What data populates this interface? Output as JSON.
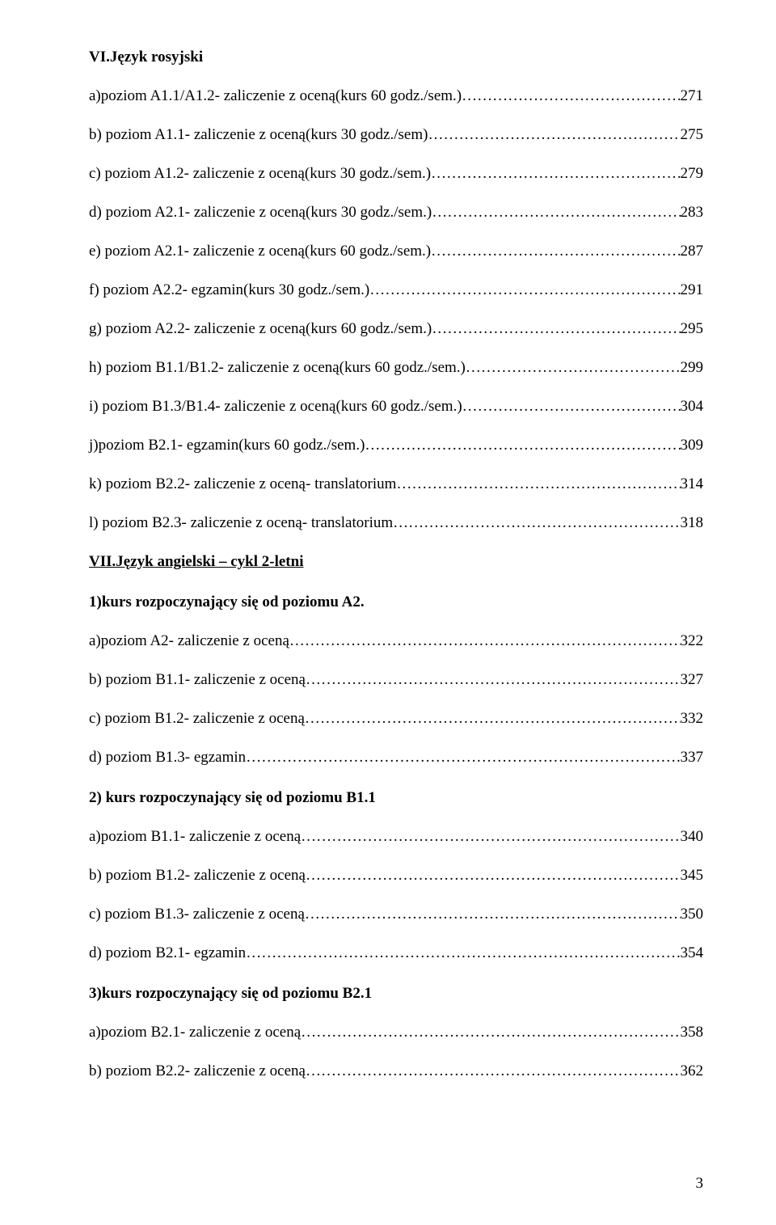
{
  "section6": {
    "heading": "VI.Język rosyjski",
    "items": [
      {
        "label": "a)poziom A1.1/A1.2- zaliczenie z oceną(kurs 60 godz./sem.)",
        "page": "271"
      },
      {
        "label": "b) poziom A1.1- zaliczenie z oceną(kurs 30 godz./sem)",
        "page": "275"
      },
      {
        "label": "c) poziom A1.2- zaliczenie z oceną(kurs 30 godz./sem.)",
        "page": "279"
      },
      {
        "label": "d) poziom A2.1- zaliczenie z oceną(kurs 30 godz./sem.)",
        "page": "283"
      },
      {
        "label": "e) poziom A2.1- zaliczenie z oceną(kurs 60 godz./sem.)",
        "page": "287"
      },
      {
        "label": "f) poziom A2.2- egzamin(kurs 30 godz./sem.)",
        "page": "291"
      },
      {
        "label": "g) poziom A2.2- zaliczenie z oceną(kurs 60 godz./sem.)",
        "page": "295"
      },
      {
        "label": "h) poziom B1.1/B1.2- zaliczenie z oceną(kurs 60 godz./sem.)",
        "page": "299"
      },
      {
        "label": "i) poziom B1.3/B1.4- zaliczenie z oceną(kurs 60 godz./sem.)",
        "page": "304"
      },
      {
        "label": "j)poziom B2.1- egzamin(kurs 60 godz./sem.)",
        "page": "309"
      },
      {
        "label": "k) poziom B2.2- zaliczenie z oceną- translatorium",
        "page": "314"
      },
      {
        "label": "l) poziom B2.3- zaliczenie z oceną- translatorium",
        "page": "318"
      }
    ]
  },
  "section7": {
    "heading": "VII.Język angielski – cykl 2-letni",
    "sub1": {
      "title": "1)kurs rozpoczynający się od poziomu A2.",
      "items": [
        {
          "label": "a)poziom A2- zaliczenie z oceną",
          "page": "322"
        },
        {
          "label": "b) poziom B1.1- zaliczenie z oceną",
          "page": "327"
        },
        {
          "label": "c) poziom B1.2- zaliczenie z oceną",
          "page": "332"
        },
        {
          "label": "d) poziom B1.3- egzamin",
          "page": "337"
        }
      ]
    },
    "sub2": {
      "title": "2) kurs rozpoczynający się od poziomu B1.1",
      "items": [
        {
          "label": "a)poziom B1.1- zaliczenie z oceną",
          "page": "340"
        },
        {
          "label": "b) poziom B1.2- zaliczenie z oceną",
          "page": "345"
        },
        {
          "label": "c) poziom B1.3- zaliczenie z oceną",
          "page": "350"
        },
        {
          "label": "d) poziom B2.1- egzamin",
          "page": "354"
        }
      ]
    },
    "sub3": {
      "title": "3)kurs rozpoczynający się od poziomu B2.1",
      "items": [
        {
          "label": "a)poziom B2.1- zaliczenie z oceną",
          "page": "358"
        },
        {
          "label": "b) poziom B2.2- zaliczenie z oceną",
          "page": "362"
        }
      ]
    }
  },
  "pageNumber": "3",
  "dotsFill": "……………………………………………………………………………………………………………………………………………………"
}
